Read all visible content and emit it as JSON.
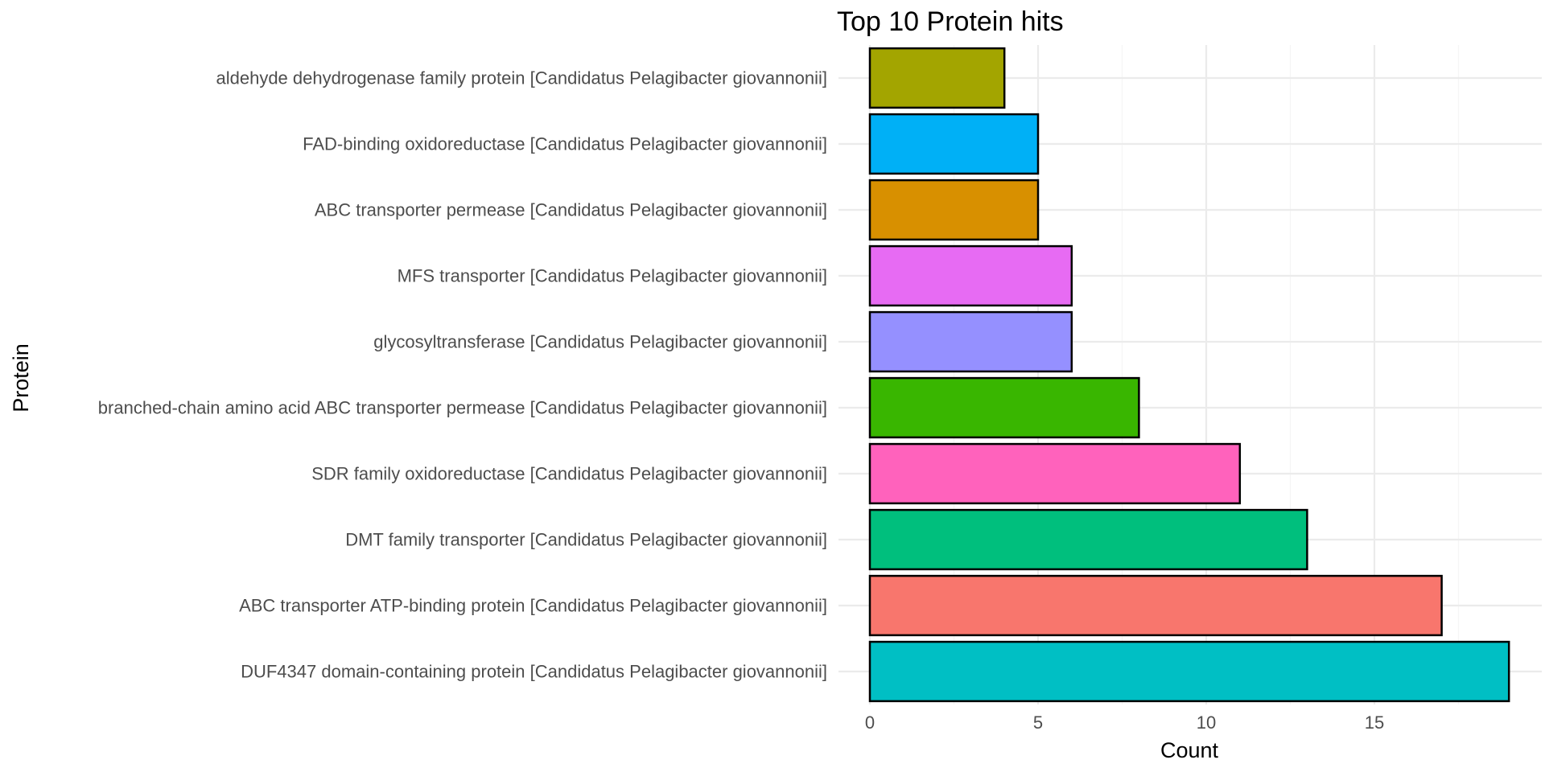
{
  "chart_data": {
    "type": "bar",
    "orientation": "horizontal",
    "title": "Top 10 Protein hits",
    "xlabel": "Count",
    "ylabel": "Protein",
    "xlim": [
      0,
      19
    ],
    "xticks": [
      0,
      5,
      10,
      15
    ],
    "grid": true,
    "legend": "none",
    "categories": [
      "aldehyde dehydrogenase family protein [Candidatus Pelagibacter giovannonii]",
      "FAD-binding oxidoreductase [Candidatus Pelagibacter giovannonii]",
      "ABC transporter permease [Candidatus Pelagibacter giovannonii]",
      "MFS transporter [Candidatus Pelagibacter giovannonii]",
      "glycosyltransferase [Candidatus Pelagibacter giovannonii]",
      "branched-chain amino acid ABC transporter permease [Candidatus Pelagibacter giovannonii]",
      "SDR family oxidoreductase [Candidatus Pelagibacter giovannonii]",
      "DMT family transporter [Candidatus Pelagibacter giovannonii]",
      "ABC transporter ATP-binding protein [Candidatus Pelagibacter giovannonii]",
      "DUF4347 domain-containing protein [Candidatus Pelagibacter giovannonii]"
    ],
    "values": [
      4,
      5,
      5,
      6,
      6,
      8,
      11,
      13,
      17,
      19
    ],
    "colors": [
      "#A3A500",
      "#00B0F6",
      "#D89000",
      "#E76BF3",
      "#9590FF",
      "#39B600",
      "#FF62BC",
      "#00BF7D",
      "#F8766D",
      "#00BFC4"
    ]
  }
}
